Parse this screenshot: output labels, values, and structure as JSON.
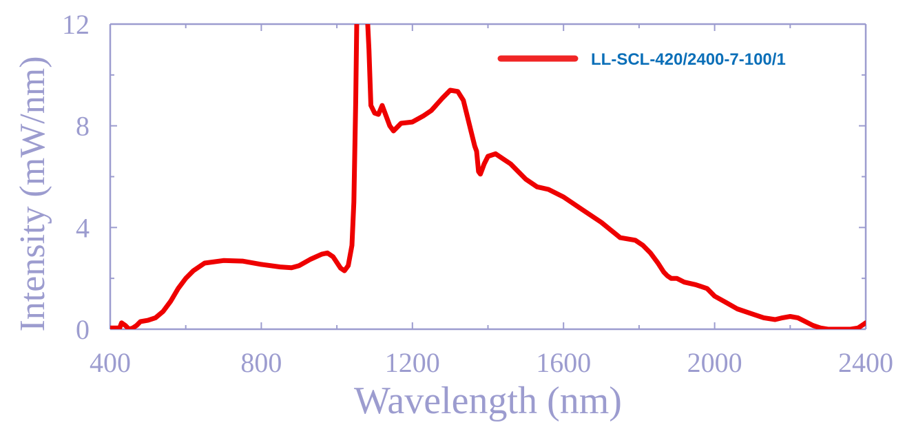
{
  "chart_data": {
    "type": "line",
    "title": "",
    "xlabel": "Wavelength (nm)",
    "ylabel": "Intensity (mW/nm)",
    "xlim": [
      400,
      2400
    ],
    "ylim": [
      0,
      12
    ],
    "xticks": [
      400,
      800,
      1200,
      1600,
      2000,
      2400
    ],
    "yticks": [
      0,
      4,
      8,
      12
    ],
    "xtick_labels": [
      "400",
      "800",
      "1200",
      "1600",
      "2000",
      "2400"
    ],
    "ytick_labels": [
      "0",
      "4",
      "8",
      "12"
    ],
    "grid": false,
    "legend_position": "top-right",
    "colors": {
      "axis": "#9c9ccf",
      "series": "#ee0000",
      "legend_text": "#0b6fb8"
    },
    "series": [
      {
        "name": "LL-SCL-420/2400-7-100/1",
        "x": [
          400,
          425,
          430,
          440,
          450,
          460,
          470,
          480,
          500,
          520,
          540,
          560,
          580,
          600,
          620,
          650,
          700,
          750,
          800,
          850,
          880,
          900,
          930,
          960,
          975,
          990,
          1010,
          1020,
          1030,
          1040,
          1045,
          1050,
          1053,
          1056,
          1060,
          1065,
          1070,
          1075,
          1080,
          1085,
          1090,
          1100,
          1110,
          1120,
          1130,
          1140,
          1150,
          1170,
          1200,
          1230,
          1250,
          1280,
          1300,
          1320,
          1335,
          1345,
          1355,
          1365,
          1370,
          1375,
          1380,
          1385,
          1390,
          1400,
          1420,
          1440,
          1460,
          1480,
          1500,
          1530,
          1560,
          1600,
          1650,
          1700,
          1750,
          1790,
          1810,
          1830,
          1850,
          1865,
          1875,
          1885,
          1900,
          1920,
          1950,
          1980,
          2000,
          2030,
          2060,
          2100,
          2130,
          2160,
          2180,
          2200,
          2220,
          2240,
          2260,
          2280,
          2300,
          2330,
          2360,
          2380,
          2390,
          2400
        ],
        "y": [
          0.05,
          0.05,
          0.25,
          0.15,
          0.0,
          0.05,
          0.15,
          0.3,
          0.35,
          0.45,
          0.7,
          1.1,
          1.6,
          2.0,
          2.3,
          2.6,
          2.7,
          2.68,
          2.55,
          2.45,
          2.42,
          2.5,
          2.75,
          2.95,
          3.0,
          2.85,
          2.4,
          2.3,
          2.5,
          3.3,
          5.0,
          9.0,
          12.5,
          12.5,
          12.5,
          12.5,
          12.5,
          12.5,
          12.5,
          11.0,
          8.8,
          8.5,
          8.45,
          8.8,
          8.4,
          8.0,
          7.8,
          8.1,
          8.15,
          8.4,
          8.6,
          9.1,
          9.4,
          9.35,
          9.0,
          8.4,
          7.8,
          7.2,
          7.0,
          6.2,
          6.1,
          6.3,
          6.5,
          6.8,
          6.9,
          6.7,
          6.5,
          6.2,
          5.9,
          5.6,
          5.5,
          5.2,
          4.7,
          4.2,
          3.6,
          3.5,
          3.3,
          3.0,
          2.6,
          2.25,
          2.1,
          2.0,
          2.0,
          1.85,
          1.75,
          1.6,
          1.3,
          1.05,
          0.8,
          0.6,
          0.45,
          0.38,
          0.45,
          0.5,
          0.45,
          0.3,
          0.15,
          0.05,
          0.0,
          0.0,
          0.0,
          0.05,
          0.15,
          0.25
        ]
      }
    ]
  }
}
